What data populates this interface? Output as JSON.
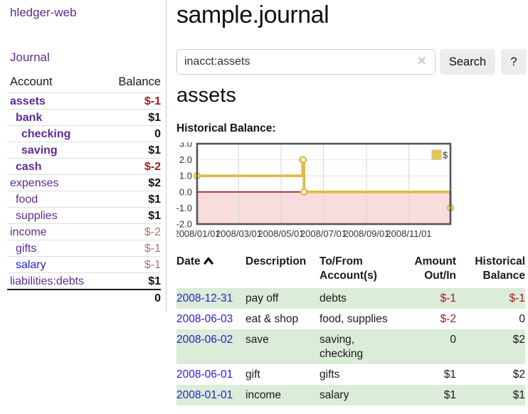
{
  "colors": {
    "accent_purple": "#5c2d91",
    "link_blue": "#2323d3",
    "negative_strong": "#a31c1c",
    "negative_muted": "#b66e6e",
    "row_green": "#dbecd8",
    "chart_gold": "#e2ba41",
    "chart_negative_fill": "#fadcdc",
    "chart_zero_line": "#9e1616"
  },
  "brand": {
    "title": "hledger-web"
  },
  "nav": {
    "journal": "Journal"
  },
  "sidebar": {
    "columns": {
      "account": "Account",
      "balance": "Balance"
    },
    "rows": [
      {
        "account": "assets",
        "balance": "$-1",
        "indent": 0,
        "bold": true,
        "balance_tone": "negative",
        "account_tone": "purple"
      },
      {
        "account": "bank",
        "balance": "$1",
        "indent": 1,
        "bold": true,
        "balance_tone": "normal",
        "account_tone": "purple"
      },
      {
        "account": "checking",
        "balance": "0",
        "indent": 2,
        "bold": true,
        "balance_tone": "normal",
        "account_tone": "purple"
      },
      {
        "account": "saving",
        "balance": "$1",
        "indent": 2,
        "bold": true,
        "balance_tone": "normal",
        "account_tone": "purple"
      },
      {
        "account": "cash",
        "balance": "$-2",
        "indent": 1,
        "bold": true,
        "balance_tone": "negative",
        "account_tone": "purple"
      },
      {
        "account": "expenses",
        "balance": "$2",
        "indent": 0,
        "bold": false,
        "balance_tone": "normal",
        "account_tone": "purple"
      },
      {
        "account": "food",
        "balance": "$1",
        "indent": 1,
        "bold": false,
        "balance_tone": "normal",
        "account_tone": "purple"
      },
      {
        "account": "supplies",
        "balance": "$1",
        "indent": 1,
        "bold": false,
        "balance_tone": "normal",
        "account_tone": "purple"
      },
      {
        "account": "income",
        "balance": "$-2",
        "indent": 0,
        "bold": false,
        "balance_tone": "negative-muted",
        "account_tone": "purple"
      },
      {
        "account": "gifts",
        "balance": "$-1",
        "indent": 1,
        "bold": false,
        "balance_tone": "negative-muted",
        "account_tone": "purple"
      },
      {
        "account": "salary",
        "balance": "$-1",
        "indent": 1,
        "bold": false,
        "balance_tone": "negative-muted",
        "account_tone": "blue"
      },
      {
        "account": "liabilities:debts",
        "balance": "$1",
        "indent": 0,
        "bold": false,
        "balance_tone": "normal",
        "account_tone": "purple"
      }
    ],
    "total": "0"
  },
  "header": {
    "title": "sample.journal"
  },
  "search": {
    "value": "inacct:assets",
    "clear_icon": "✕",
    "button_label": "Search",
    "help_label": "?"
  },
  "account_page": {
    "title": "assets",
    "chart_heading": "Historical Balance:"
  },
  "chart_data": {
    "type": "line",
    "step": true,
    "title": "Historical Balance",
    "x_domain": [
      "2008-01-01",
      "2008-12-31"
    ],
    "ylim": [
      -2,
      3
    ],
    "grid": true,
    "legend": {
      "label": "$",
      "position": "top-right",
      "swatch_color": "#e9c647"
    },
    "y_ticks": [
      {
        "label": "3.0",
        "value": 3
      },
      {
        "label": "2.0",
        "value": 2
      },
      {
        "label": "1.0",
        "value": 1
      },
      {
        "label": "0.0",
        "value": 0
      },
      {
        "label": "-1.0",
        "value": -1
      },
      {
        "label": "-2.0",
        "value": -2
      }
    ],
    "x_ticks": [
      {
        "label": "2008/01/01",
        "date": "2008-01-01"
      },
      {
        "label": "2008/03/01",
        "date": "2008-03-01"
      },
      {
        "label": "2008/05/01",
        "date": "2008-05-01"
      },
      {
        "label": "2008/07/01",
        "date": "2008-07-01"
      },
      {
        "label": "2008/09/01",
        "date": "2008-09-01"
      },
      {
        "label": "2008/11/01",
        "date": "2008-11-01"
      }
    ],
    "series": [
      {
        "name": "$",
        "color": "#e2ba41",
        "points": [
          {
            "date": "2008-01-01",
            "value": 1
          },
          {
            "date": "2008-06-01",
            "value": 2
          },
          {
            "date": "2008-06-02",
            "value": 2
          },
          {
            "date": "2008-06-03",
            "value": 0
          },
          {
            "date": "2008-12-31",
            "value": -1
          }
        ]
      }
    ],
    "zero_line_color": "#9e1616",
    "negative_region_fill": "#fadcdc"
  },
  "transactions": {
    "columns": [
      {
        "label": "Date",
        "sort": "asc",
        "align": "left"
      },
      {
        "label": "Description",
        "align": "left"
      },
      {
        "label": "To/From Account(s)",
        "align": "left"
      },
      {
        "label": "Amount Out/In",
        "align": "right"
      },
      {
        "label": "Historical Balance",
        "align": "right"
      }
    ],
    "rows": [
      {
        "date": "2008-12-31",
        "description": "pay off",
        "accounts": "debts",
        "amount": "$-1",
        "amount_tone": "negative",
        "balance": "$-1",
        "balance_tone": "negative"
      },
      {
        "date": "2008-06-03",
        "description": "eat & shop",
        "accounts": "food, supplies",
        "amount": "$-2",
        "amount_tone": "negative",
        "balance": "0",
        "balance_tone": "normal"
      },
      {
        "date": "2008-06-02",
        "description": "save",
        "accounts": "saving, checking",
        "amount": "0",
        "amount_tone": "normal",
        "balance": "$2",
        "balance_tone": "normal"
      },
      {
        "date": "2008-06-01",
        "description": "gift",
        "accounts": "gifts",
        "amount": "$1",
        "amount_tone": "normal",
        "balance": "$2",
        "balance_tone": "normal"
      },
      {
        "date": "2008-01-01",
        "description": "income",
        "accounts": "salary",
        "amount": "$1",
        "amount_tone": "normal",
        "balance": "$1",
        "balance_tone": "normal"
      }
    ]
  }
}
